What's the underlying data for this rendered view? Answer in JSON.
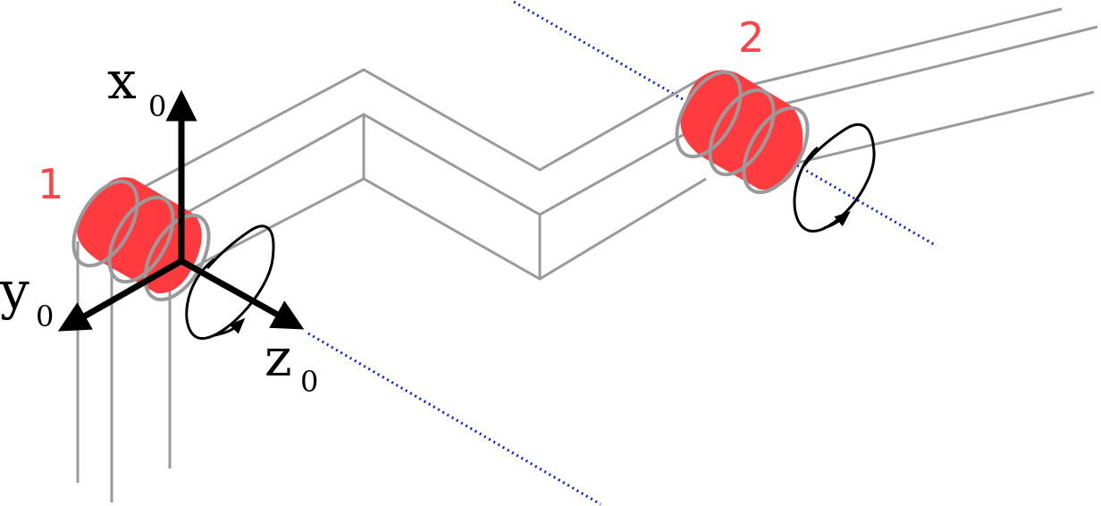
{
  "joints": [
    {
      "label": "1",
      "color": "#ff3b3f"
    },
    {
      "label": "2",
      "color": "#ff3b3f"
    }
  ],
  "axes": {
    "x": {
      "letter": "x",
      "sub": "0"
    },
    "y": {
      "letter": "y",
      "sub": "0"
    },
    "z": {
      "letter": "z",
      "sub": "0"
    }
  },
  "colors": {
    "link": "#9a9a9a",
    "axis_line": "#0a1fd6",
    "arrow": "#000000"
  }
}
